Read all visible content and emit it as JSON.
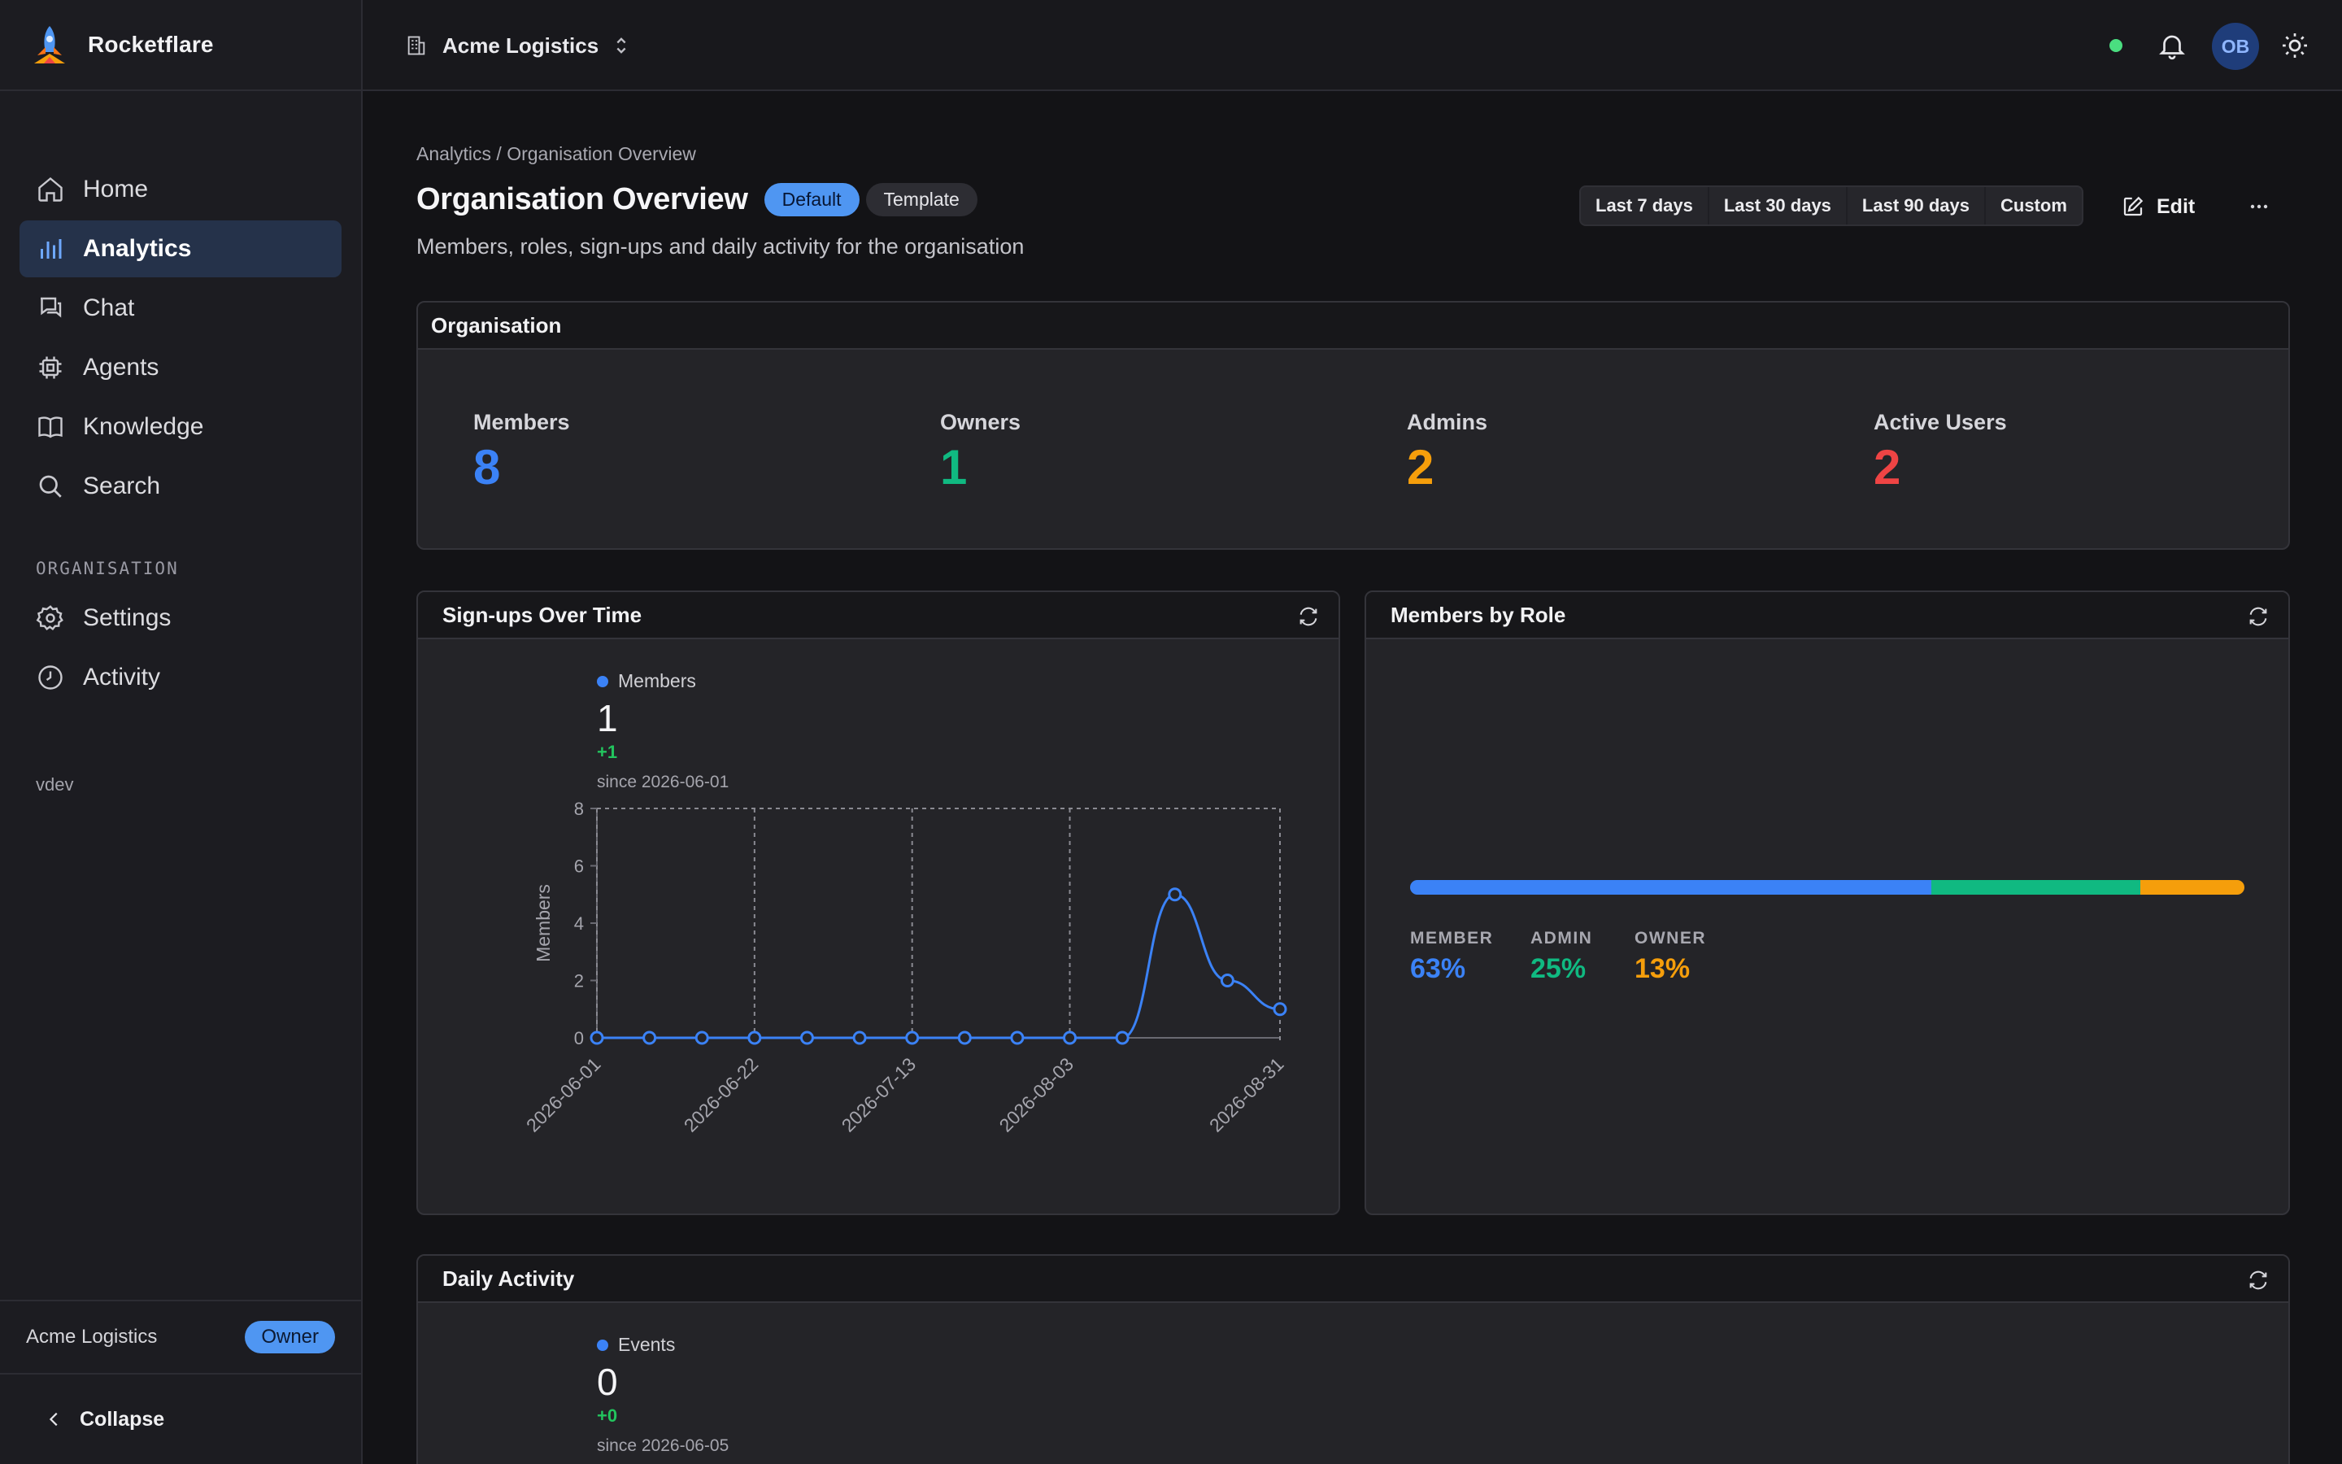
{
  "app": {
    "name": "Rocketflare"
  },
  "sidebar": {
    "items": [
      {
        "label": "Home",
        "icon": "home-icon"
      },
      {
        "label": "Analytics",
        "icon": "bar-chart-icon",
        "active": true
      },
      {
        "label": "Chat",
        "icon": "chat-icon"
      },
      {
        "label": "Agents",
        "icon": "chip-icon"
      },
      {
        "label": "Knowledge",
        "icon": "book-icon"
      },
      {
        "label": "Search",
        "icon": "search-icon"
      }
    ],
    "section_label": "ORGANISATION",
    "section_items": [
      {
        "label": "Settings",
        "icon": "gear-icon"
      },
      {
        "label": "Activity",
        "icon": "clock-icon"
      }
    ],
    "env_label": "vdev",
    "org_name": "Acme Logistics",
    "role_badge": "Owner",
    "collapse_label": "Collapse"
  },
  "topbar": {
    "org_name": "Acme Logistics",
    "avatar_initials": "OB",
    "status_color": "#4ade80"
  },
  "page": {
    "breadcrumb": "Analytics / Organisation Overview",
    "title": "Organisation Overview",
    "badge_default": "Default",
    "badge_template": "Template",
    "subtitle": "Members, roles, sign-ups and daily activity for the organisation",
    "ranges": [
      "Last 7 days",
      "Last 30 days",
      "Last 90 days",
      "Custom"
    ],
    "edit_label": "Edit",
    "more_label": "···"
  },
  "org_card": {
    "title": "Organisation",
    "stats": [
      {
        "label": "Members",
        "value": "8",
        "color": "#3b82f6"
      },
      {
        "label": "Owners",
        "value": "1",
        "color": "#10b981"
      },
      {
        "label": "Admins",
        "value": "2",
        "color": "#f59e0b"
      },
      {
        "label": "Active Users",
        "value": "2",
        "color": "#ef4444"
      }
    ]
  },
  "signups_card": {
    "title": "Sign-ups Over Time",
    "legend": "Members",
    "value": "1",
    "delta": "+1",
    "since": "since 2026-06-01"
  },
  "roles_card": {
    "title": "Members by Role",
    "roles": [
      {
        "name": "MEMBER",
        "pct": "63%",
        "share": 0.625,
        "color": "#3b82f6"
      },
      {
        "name": "ADMIN",
        "pct": "25%",
        "share": 0.25,
        "color": "#10b981"
      },
      {
        "name": "OWNER",
        "pct": "13%",
        "share": 0.125,
        "color": "#f59e0b"
      }
    ]
  },
  "daily_card": {
    "title": "Daily Activity",
    "legend": "Events",
    "value": "0",
    "delta": "+0",
    "since": "since 2026-06-05"
  },
  "chart_data": {
    "type": "line",
    "title": "",
    "xlabel": "",
    "ylabel": "Members",
    "x": [
      "2026-06-01",
      "2026-06-08",
      "2026-06-15",
      "2026-06-22",
      "2026-06-29",
      "2026-07-06",
      "2026-07-13",
      "2026-07-20",
      "2026-07-27",
      "2026-08-03",
      "2026-08-10",
      "2026-08-17",
      "2026-08-24",
      "2026-08-31"
    ],
    "series": [
      {
        "name": "Members",
        "values": [
          0,
          0,
          0,
          0,
          0,
          0,
          0,
          0,
          0,
          0,
          0,
          5,
          2,
          1
        ],
        "color": "#3b82f6"
      }
    ],
    "ylim": [
      0,
      8
    ],
    "yticks": [
      "0",
      "2",
      "4",
      "6",
      "8"
    ],
    "xtick_labels": [
      "2026-06-01",
      "2026-06-22",
      "2026-07-13",
      "2026-08-03",
      "2026-08-31"
    ],
    "grid": "vertical-dashed",
    "legend": "top-left"
  }
}
